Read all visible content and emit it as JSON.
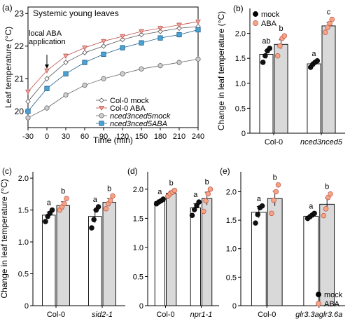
{
  "figure_panels": [
    {
      "label": "(a)",
      "title": "Systemic young leaves",
      "annotation_lines": [
        "local ABA",
        "application"
      ]
    },
    {
      "label": "(b)"
    },
    {
      "label": "(c)"
    },
    {
      "label": "(d)"
    },
    {
      "label": "(e)"
    }
  ],
  "chart_data": [
    {
      "panel": "a",
      "type": "line",
      "title": "Systemic young leaves",
      "xlabel": "Time (min)",
      "ylabel": "Leaf temperature (°C)",
      "xlim": [
        -30,
        240
      ],
      "ylim": [
        19.5,
        23.2
      ],
      "xticks": [
        -30,
        0,
        30,
        60,
        90,
        120,
        150,
        180,
        210,
        240
      ],
      "yticks": [
        20,
        21,
        22,
        23
      ],
      "annotation": "local ABA application",
      "annotation_x": 0,
      "legend_position": "bottom-right",
      "series": [
        {
          "name": "Col-0 mock",
          "marker": "diamond-open",
          "color": "#ffffff",
          "edge": "#555555",
          "x": [
            -30,
            0,
            30,
            60,
            90,
            120,
            150,
            180,
            210,
            240
          ],
          "values": [
            20.3,
            21.0,
            21.5,
            21.8,
            22.0,
            22.2,
            22.35,
            22.45,
            22.55,
            22.6
          ]
        },
        {
          "name": "Col-0 ABA",
          "marker": "triangle-down",
          "color": "#f0a79a",
          "edge": "#c0504d",
          "x": [
            -30,
            0,
            30,
            60,
            90,
            120,
            150,
            180,
            210,
            240
          ],
          "values": [
            20.6,
            21.25,
            21.7,
            21.95,
            22.15,
            22.3,
            22.45,
            22.55,
            22.65,
            22.75
          ]
        },
        {
          "name": "nced3nced5mock",
          "marker": "circle-open",
          "color": "#cfcfcf",
          "edge": "#666666",
          "x": [
            -30,
            0,
            30,
            60,
            90,
            120,
            150,
            180,
            210,
            240
          ],
          "values": [
            19.8,
            20.1,
            20.5,
            20.8,
            21.0,
            21.15,
            21.3,
            21.4,
            21.5,
            21.6
          ]
        },
        {
          "name": "nced3nced5ABA",
          "marker": "square",
          "color": "#4aa3d6",
          "edge": "#1f5f8b",
          "x": [
            -30,
            0,
            30,
            60,
            90,
            120,
            150,
            180,
            210,
            240
          ],
          "values": [
            20.0,
            20.7,
            21.15,
            21.5,
            21.75,
            21.95,
            22.1,
            22.25,
            22.35,
            22.5
          ]
        }
      ]
    },
    {
      "panel": "b",
      "type": "bar",
      "ylabel": "Change in leaf temperature (°C)",
      "ylim": [
        0,
        2.5
      ],
      "yticks": [
        "0",
        "0.5",
        "1.0",
        "1.5",
        "2.0"
      ],
      "groups": [
        {
          "label": "Col-0",
          "bars": [
            {
              "treatment": "mock",
              "value": 1.58,
              "error": 0.08,
              "letter": "ab",
              "points": [
                1.42,
                1.55,
                1.65,
                1.7
              ]
            },
            {
              "treatment": "ABA",
              "value": 1.78,
              "error": 0.09,
              "letter": "b",
              "points": [
                1.55,
                1.75,
                1.9,
                1.95
              ]
            }
          ]
        },
        {
          "label": "nced3nced5",
          "bars": [
            {
              "treatment": "mock",
              "value": 1.39,
              "error": 0.04,
              "letter": "a",
              "points": [
                1.32,
                1.38,
                1.42,
                1.45
              ]
            },
            {
              "treatment": "ABA",
              "value": 2.15,
              "error": 0.07,
              "letter": "c",
              "points": [
                2.02,
                2.12,
                2.2,
                2.28
              ]
            }
          ]
        }
      ],
      "legend": [
        {
          "label": "mock",
          "color": "#000000"
        },
        {
          "label": "ABA",
          "color": "#f4a582"
        }
      ],
      "legend_position": "top-left"
    },
    {
      "panel": "c",
      "type": "bar",
      "ylabel": "Change in leaf temperature (°C)",
      "ylim": [
        0,
        2.1
      ],
      "yticks": [
        "0",
        "0.5",
        "1.0",
        "1.5",
        "2.0"
      ],
      "groups": [
        {
          "label": "Col-0",
          "bars": [
            {
              "treatment": "mock",
              "value": 1.42,
              "error": 0.05,
              "letter": "a",
              "points": [
                1.32,
                1.4,
                1.45,
                1.5
              ]
            },
            {
              "treatment": "ABA",
              "value": 1.57,
              "error": 0.06,
              "letter": "b",
              "points": [
                1.5,
                1.55,
                1.6,
                1.68
              ]
            }
          ]
        },
        {
          "label": "sid2-1",
          "bars": [
            {
              "treatment": "mock",
              "value": 1.4,
              "error": 0.1,
              "letter": "a",
              "points": [
                1.22,
                1.35,
                1.5,
                1.55
              ]
            },
            {
              "treatment": "ABA",
              "value": 1.62,
              "error": 0.06,
              "letter": "b",
              "points": [
                1.52,
                1.6,
                1.65,
                1.72
              ]
            }
          ]
        }
      ]
    },
    {
      "panel": "d",
      "type": "bar",
      "ylim": [
        0,
        2.3
      ],
      "yticks": [
        "0",
        "0.5",
        "1.0",
        "1.5",
        "2.0"
      ],
      "groups": [
        {
          "label": "Col-0",
          "bars": [
            {
              "treatment": "mock",
              "value": 1.79,
              "error": 0.03,
              "letter": "a",
              "points": [
                1.75,
                1.78,
                1.8,
                1.83
              ]
            },
            {
              "treatment": "ABA",
              "value": 1.93,
              "error": 0.04,
              "letter": "b",
              "points": [
                1.88,
                1.92,
                1.95,
                1.98
              ]
            }
          ]
        },
        {
          "label": "npr1-1",
          "bars": [
            {
              "treatment": "mock",
              "value": 1.68,
              "error": 0.07,
              "letter": "a",
              "points": [
                1.55,
                1.65,
                1.72,
                1.78
              ]
            },
            {
              "treatment": "ABA",
              "value": 1.84,
              "error": 0.11,
              "letter": "b",
              "points": [
                1.62,
                1.8,
                1.92,
                2.0
              ]
            }
          ]
        }
      ]
    },
    {
      "panel": "e",
      "type": "bar",
      "ylim": [
        0,
        2.35
      ],
      "yticks": [
        "0",
        "0.5",
        "1.0",
        "1.5",
        "2.0"
      ],
      "groups": [
        {
          "label": "Col-0",
          "bars": [
            {
              "treatment": "mock",
              "value": 1.64,
              "error": 0.1,
              "letter": "a",
              "points": [
                1.45,
                1.6,
                1.72,
                1.75
              ]
            },
            {
              "treatment": "ABA",
              "value": 1.88,
              "error": 0.13,
              "letter": "b",
              "points": [
                1.62,
                1.85,
                2.0,
                2.12
              ]
            }
          ]
        },
        {
          "label": "glr3.3aglr3.6a",
          "bars": [
            {
              "treatment": "mock",
              "value": 1.57,
              "error": 0.03,
              "letter": "a",
              "points": [
                1.53,
                1.56,
                1.59,
                1.62
              ]
            },
            {
              "treatment": "ABA",
              "value": 1.78,
              "error": 0.11,
              "letter": "b",
              "points": [
                1.58,
                1.7,
                1.9,
                1.96
              ]
            }
          ]
        }
      ],
      "legend": [
        {
          "label": "mock",
          "color": "#000000"
        },
        {
          "label": "ABA",
          "color": "#f4a582"
        }
      ],
      "legend_position": "bottom-right"
    }
  ]
}
